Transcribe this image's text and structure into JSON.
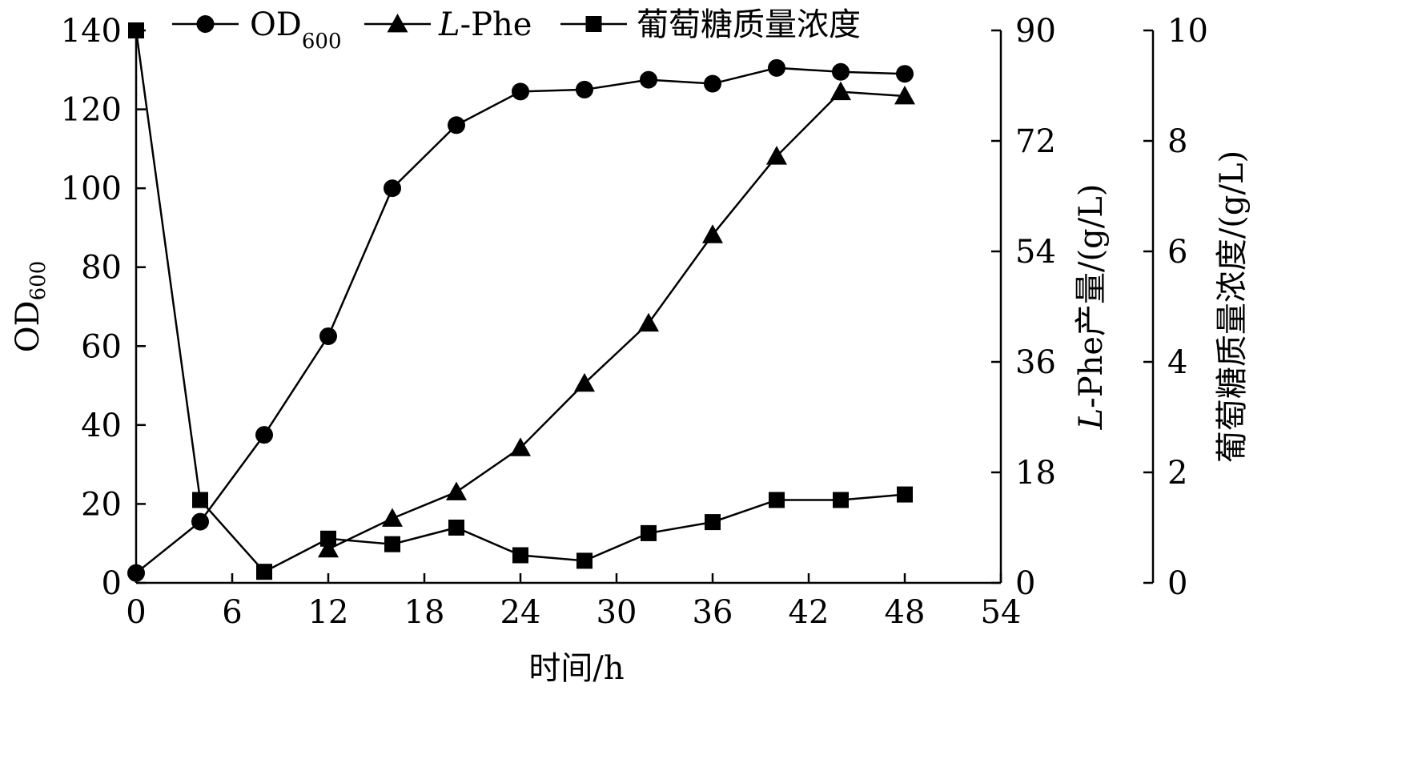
{
  "chart_data": {
    "type": "line",
    "xlabel": "时间/h",
    "x_ticks": [
      "0",
      "6",
      "12",
      "18",
      "24",
      "30",
      "36",
      "42",
      "48",
      "54"
    ],
    "xlim": [
      0,
      54
    ],
    "y_axes": [
      {
        "id": "od",
        "label_main": "OD",
        "label_sub": "600",
        "ylim": [
          0,
          140
        ],
        "ticks": [
          "0",
          "20",
          "40",
          "60",
          "80",
          "100",
          "120",
          "140"
        ]
      },
      {
        "id": "phe",
        "label_italic": "L",
        "label_rest": "-Phe产量/(g/L)",
        "ylim": [
          0,
          90
        ],
        "ticks": [
          "0",
          "18",
          "36",
          "54",
          "72",
          "90"
        ]
      },
      {
        "id": "glc",
        "label": "葡萄糖质量浓度/(g/L)",
        "ylim": [
          0,
          10
        ],
        "ticks": [
          "0",
          "2",
          "4",
          "6",
          "8",
          "10"
        ]
      }
    ],
    "legend_position": "top",
    "grid": false,
    "series": [
      {
        "name_main": "OD",
        "name_sub": "600",
        "axis": "od",
        "marker": "circle",
        "x": [
          0,
          4,
          8,
          12,
          16,
          20,
          24,
          28,
          32,
          36,
          40,
          44,
          48
        ],
        "y": [
          2.5,
          15.5,
          37.5,
          62.5,
          100,
          116,
          124.5,
          125,
          127.5,
          126.5,
          130.5,
          129.5,
          129
        ]
      },
      {
        "name_italic": "L",
        "name_rest": "-Phe",
        "axis": "phe",
        "marker": "triangle",
        "x": [
          12,
          16,
          20,
          24,
          28,
          32,
          36,
          40,
          44,
          48
        ],
        "y": [
          5.5,
          10.5,
          14.8,
          22,
          32.5,
          42.3,
          56.7,
          69.5,
          80,
          79.3
        ]
      },
      {
        "name": "葡萄糖质量浓度",
        "axis": "glc",
        "marker": "square",
        "x": [
          0,
          4,
          8,
          12,
          16,
          20,
          24,
          28,
          32,
          36,
          40,
          44,
          48
        ],
        "y": [
          10,
          1.5,
          0.2,
          0.8,
          0.7,
          1.0,
          0.5,
          0.4,
          0.9,
          1.1,
          1.5,
          1.5,
          1.6
        ]
      }
    ]
  }
}
